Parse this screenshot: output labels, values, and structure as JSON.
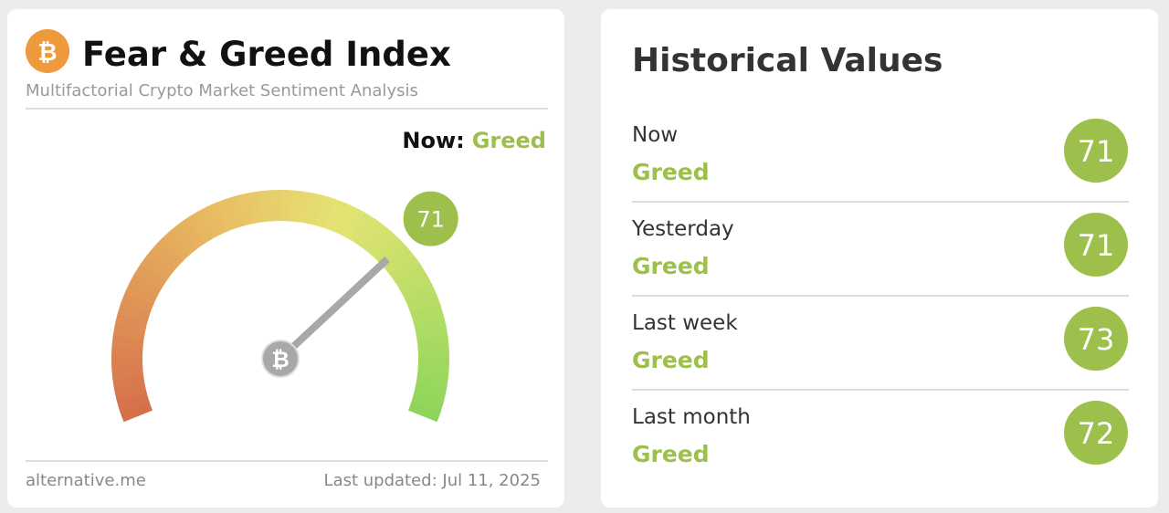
{
  "header": {
    "logo": "₿",
    "title": "Fear & Greed Index",
    "subtitle": "Multifactorial Crypto Market Sentiment Analysis"
  },
  "gauge": {
    "now_label": "Now:",
    "now_status": "Greed",
    "value": 71
  },
  "footer": {
    "source": "alternative.me",
    "updated": "Last updated: Jul 11, 2025"
  },
  "history": {
    "title": "Historical Values",
    "rows": [
      {
        "label": "Now",
        "status": "Greed",
        "value": 71
      },
      {
        "label": "Yesterday",
        "status": "Greed",
        "value": 71
      },
      {
        "label": "Last week",
        "status": "Greed",
        "value": 73
      },
      {
        "label": "Last month",
        "status": "Greed",
        "value": 72
      }
    ]
  }
}
